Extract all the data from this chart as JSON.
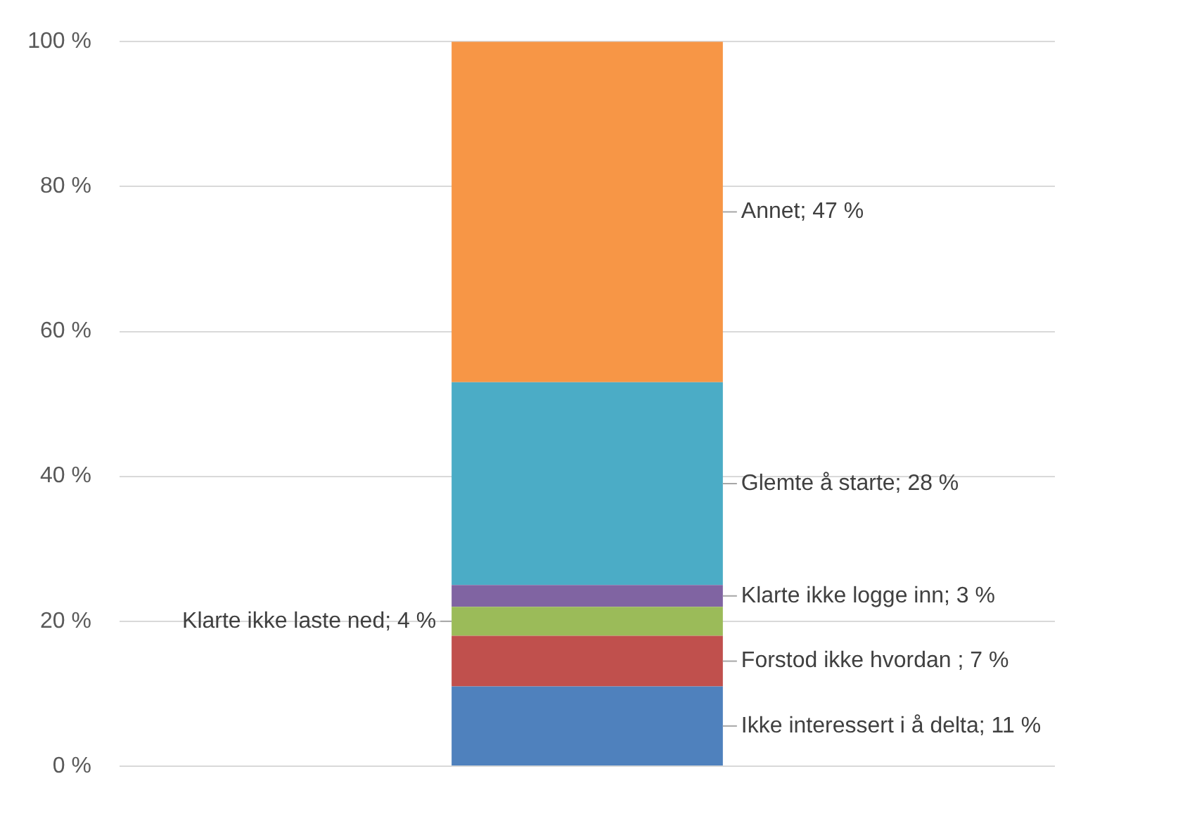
{
  "chart_data": {
    "type": "bar",
    "stacked": true,
    "categories": [
      null
    ],
    "series": [
      {
        "color": "#4f81bd",
        "values": [
          11
        ],
        "value_labels": [
          "Ikke interessert i å delta; 11 %"
        ]
      },
      {
        "color": "#c0504d",
        "values": [
          7
        ],
        "value_labels": [
          "Forstod ikke hvordan ; 7 %"
        ]
      },
      {
        "color": "#9bbb59",
        "values": [
          4
        ],
        "value_labels": [
          "Klarte ikke laste ned; 4 %"
        ]
      },
      {
        "color": "#8064a2",
        "values": [
          3
        ],
        "value_labels": [
          "Klarte ikke logge inn; 3 %"
        ]
      },
      {
        "color": "#4bacc6",
        "values": [
          28
        ],
        "value_labels": [
          "Glemte å starte; 28 %"
        ]
      },
      {
        "color": "#f79646",
        "values": [
          47
        ],
        "value_labels": [
          "Annet; 47 %"
        ]
      }
    ],
    "ylim": [
      0,
      100
    ],
    "yticks": [
      {
        "value": 0,
        "label": "0 %"
      },
      {
        "value": 20,
        "label": "20 %"
      },
      {
        "value": 40,
        "label": "40 %"
      },
      {
        "value": 60,
        "label": "60 %"
      },
      {
        "value": 80,
        "label": "80 %"
      },
      {
        "value": 100,
        "label": "100 %"
      }
    ],
    "grid": "y",
    "legend": false
  }
}
